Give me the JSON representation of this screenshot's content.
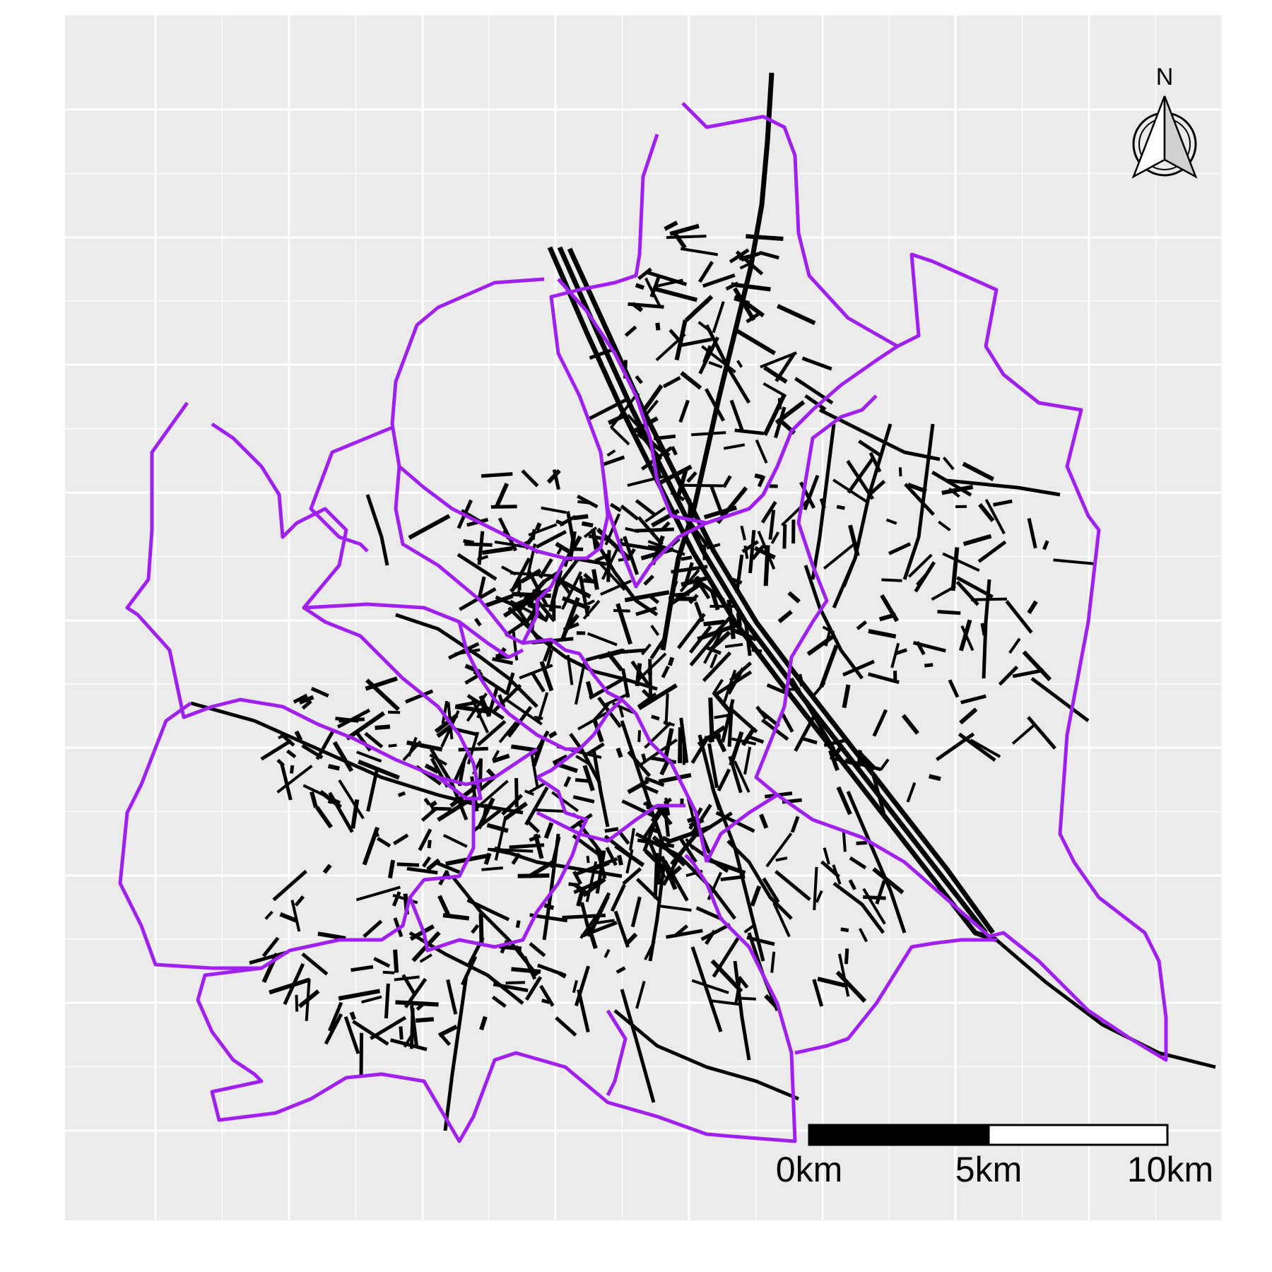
{
  "map": {
    "background_color": "#ebebeb",
    "grid_color": "#ffffff",
    "boundary_color": "#a020f0",
    "road_color": "#000000",
    "grid": true,
    "north_arrow": {
      "label": "N",
      "icon": "north-arrow-icon",
      "placement": "top-right"
    },
    "scale_bar": {
      "placement": "bottom-right",
      "labels": [
        "0km",
        "5km",
        "10km"
      ],
      "segment_colors": [
        "#000000",
        "#ffffff"
      ]
    }
  }
}
